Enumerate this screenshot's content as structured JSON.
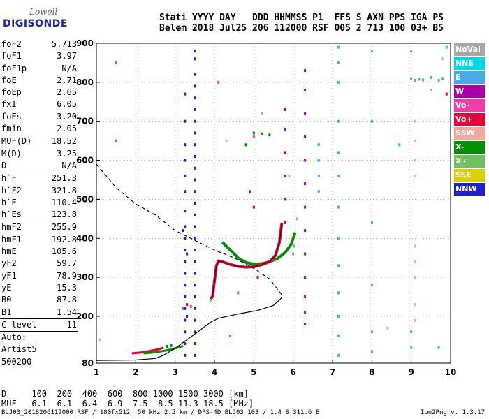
{
  "logo": {
    "brand_top": "Lowell",
    "brand_main": "DIGISONDE"
  },
  "header": {
    "line1": "Stati YYYY DAY   DDD HHMMSS P1  FFS S AXN PPS IGA PS",
    "line2": "Belem 2018 Jul25 206 112000 RSF 005 2 713 100 03+ B5"
  },
  "params": [
    {
      "name": "foF2",
      "value": "5.713"
    },
    {
      "name": "foF1",
      "value": "3.97"
    },
    {
      "name": "foF1p",
      "value": "N/A"
    },
    {
      "name": "foE",
      "value": "2.71"
    },
    {
      "name": "foEp",
      "value": "2.65"
    },
    {
      "name": "fxI",
      "value": "6.05"
    },
    {
      "name": "foEs",
      "value": "3.20"
    },
    {
      "name": "fmin",
      "value": "2.05"
    },
    {
      "sep": true
    },
    {
      "name": "MUF(D)",
      "value": "18.52"
    },
    {
      "name": "M(D)",
      "value": "3.25"
    },
    {
      "name": "D",
      "value": "N/A"
    },
    {
      "sep": true
    },
    {
      "name": "h`F",
      "value": "251.3"
    },
    {
      "name": "h`F2",
      "value": "321.8"
    },
    {
      "name": "h`E",
      "value": "110.4"
    },
    {
      "name": "h`Es",
      "value": "123.8"
    },
    {
      "sep": true
    },
    {
      "name": "hmF2",
      "value": "255.9"
    },
    {
      "name": "hmF1",
      "value": "192.8"
    },
    {
      "name": "hmE",
      "value": "105.6"
    },
    {
      "name": "yF2",
      "value": "59.7"
    },
    {
      "name": "yF1",
      "value": "78.9"
    },
    {
      "name": "yE",
      "value": "15.3"
    },
    {
      "name": "B0",
      "value": "87.8"
    },
    {
      "name": "B1",
      "value": "1.54"
    },
    {
      "sep": true
    },
    {
      "name": "C-level",
      "value": "11"
    },
    {
      "sep": true
    },
    {
      "name": "Auto:",
      "value": ""
    },
    {
      "name": "Artist5",
      "value": ""
    },
    {
      "name": "500200",
      "value": ""
    }
  ],
  "legend": [
    {
      "label": "NoVal",
      "color": "#a8a8a8"
    },
    {
      "label": "NNE",
      "color": "#00d8e8"
    },
    {
      "label": "E",
      "color": "#4aaae8"
    },
    {
      "label": "W",
      "color": "#a800a8"
    },
    {
      "label": "Vo-",
      "color": "#ee40a8"
    },
    {
      "label": "Vo+",
      "color": "#e8003a"
    },
    {
      "label": "SSW",
      "color": "#f0a8a0"
    },
    {
      "label": "X-",
      "color": "#009000"
    },
    {
      "label": "X+",
      "color": "#70c060"
    },
    {
      "label": "SSE",
      "color": "#d8d000"
    },
    {
      "label": "NNW",
      "color": "#2020c8"
    }
  ],
  "footer": {
    "line1": "D     100  200  400  600  800 1000 1500 3000 [km]",
    "line2": "MUF   6.1  6.1  6.4  6.9  7.5  8.5 11.3 18.5 [MHz]",
    "bottom": "BLJ03_2018206112000.RSF / 180fx512h 50 kHz 2.5 km / DPS-4D BLJ03 103 / 1.4 S 311.6 E",
    "version": "Ion2Png v. 1.3.17"
  },
  "chart_data": {
    "type": "scatter",
    "xlim": [
      1,
      10
    ],
    "ylim": [
      80,
      900
    ],
    "xticks": [
      1,
      2,
      3,
      4,
      5,
      6,
      7,
      8,
      9,
      10
    ],
    "yticks": [
      80,
      200,
      300,
      400,
      500,
      600,
      700,
      800,
      900
    ],
    "grid": true,
    "grid_style": "dotted",
    "profile_line": [
      [
        1.0,
        87
      ],
      [
        2.0,
        88
      ],
      [
        2.5,
        92
      ],
      [
        2.7,
        100
      ],
      [
        3.0,
        118
      ],
      [
        3.3,
        140
      ],
      [
        3.6,
        162
      ],
      [
        3.9,
        185
      ],
      [
        4.1,
        195
      ],
      [
        4.6,
        206
      ],
      [
        5.1,
        215
      ],
      [
        5.5,
        228
      ],
      [
        5.713,
        248
      ]
    ],
    "mufd_dashed": [
      [
        1.0,
        590
      ],
      [
        1.5,
        530
      ],
      [
        2.0,
        488
      ],
      [
        2.5,
        460
      ],
      [
        3.0,
        420
      ],
      [
        3.5,
        395
      ],
      [
        4.0,
        370
      ],
      [
        4.5,
        350
      ],
      [
        5.0,
        323
      ],
      [
        5.4,
        296
      ],
      [
        5.713,
        255
      ]
    ],
    "f_trace": [
      [
        3.9,
        245
      ],
      [
        3.95,
        250
      ],
      [
        4.0,
        290
      ],
      [
        4.05,
        330
      ],
      [
        4.1,
        342
      ],
      [
        4.2,
        340
      ],
      [
        4.4,
        333
      ],
      [
        4.6,
        328
      ],
      [
        4.8,
        326
      ],
      [
        5.0,
        327
      ],
      [
        5.2,
        332
      ],
      [
        5.4,
        340
      ],
      [
        5.55,
        356
      ],
      [
        5.65,
        390
      ],
      [
        5.713,
        440
      ]
    ],
    "x_trace": [
      [
        4.2,
        390
      ],
      [
        4.4,
        370
      ],
      [
        4.6,
        350
      ],
      [
        4.8,
        338
      ],
      [
        5.0,
        334
      ],
      [
        5.2,
        335
      ],
      [
        5.4,
        340
      ],
      [
        5.6,
        348
      ],
      [
        5.8,
        364
      ],
      [
        5.95,
        385
      ],
      [
        6.05,
        415
      ]
    ],
    "e_trace": [
      [
        1.9,
        105
      ],
      [
        2.2,
        108
      ],
      [
        2.4,
        112
      ],
      [
        2.6,
        116
      ],
      [
        2.71,
        120
      ]
    ],
    "es_trace": [
      [
        2.2,
        105
      ],
      [
        2.5,
        108
      ],
      [
        2.8,
        113
      ],
      [
        3.0,
        118
      ],
      [
        3.2,
        124
      ]
    ],
    "points": [
      [
        3.5,
        880,
        "NNW"
      ],
      [
        3.5,
        860,
        "NNW"
      ],
      [
        3.5,
        820,
        "NNW"
      ],
      [
        3.5,
        790,
        "NNW"
      ],
      [
        3.5,
        760,
        "NNW"
      ],
      [
        3.5,
        730,
        "NNW"
      ],
      [
        3.5,
        700,
        "NNW"
      ],
      [
        3.5,
        670,
        "NNW"
      ],
      [
        3.5,
        640,
        "NNW"
      ],
      [
        3.5,
        610,
        "NNW"
      ],
      [
        3.5,
        580,
        "NNW"
      ],
      [
        3.5,
        550,
        "NNW"
      ],
      [
        3.5,
        520,
        "NNW"
      ],
      [
        3.5,
        490,
        "NNW"
      ],
      [
        3.5,
        460,
        "NNW"
      ],
      [
        3.5,
        430,
        "NNW"
      ],
      [
        3.5,
        400,
        "NNW"
      ],
      [
        3.5,
        370,
        "NNW"
      ],
      [
        3.5,
        340,
        "NNW"
      ],
      [
        3.5,
        310,
        "NNW"
      ],
      [
        3.5,
        280,
        "NNW"
      ],
      [
        3.5,
        250,
        "NNW"
      ],
      [
        3.5,
        220,
        "NNW"
      ],
      [
        3.5,
        190,
        "NNW"
      ],
      [
        3.5,
        160,
        "NNW"
      ],
      [
        3.5,
        130,
        "NNW"
      ],
      [
        3.5,
        100,
        "NNW"
      ],
      [
        3.25,
        770,
        "NNW"
      ],
      [
        3.25,
        700,
        "NNW"
      ],
      [
        3.25,
        640,
        "NNW"
      ],
      [
        3.25,
        600,
        "NNW"
      ],
      [
        3.25,
        560,
        "NNW"
      ],
      [
        3.25,
        520,
        "NNW"
      ],
      [
        3.25,
        470,
        "NNW"
      ],
      [
        3.25,
        430,
        "NNW"
      ],
      [
        3.25,
        400,
        "NNW"
      ],
      [
        3.25,
        370,
        "NNW"
      ],
      [
        3.25,
        340,
        "NNW"
      ],
      [
        3.25,
        310,
        "NNW"
      ],
      [
        3.25,
        280,
        "NNW"
      ],
      [
        3.25,
        250,
        "NNW"
      ],
      [
        3.25,
        220,
        "NNW"
      ],
      [
        3.25,
        190,
        "NNW"
      ],
      [
        3.25,
        160,
        "NNW"
      ],
      [
        3.25,
        130,
        "NNW"
      ],
      [
        3.25,
        100,
        "NNW"
      ],
      [
        3.2,
        420,
        "NNW"
      ],
      [
        3.3,
        360,
        "NNW"
      ],
      [
        3.3,
        200,
        "NNW"
      ],
      [
        6.3,
        830,
        "W"
      ],
      [
        6.3,
        780,
        "W"
      ],
      [
        6.3,
        720,
        "W"
      ],
      [
        6.3,
        660,
        "W"
      ],
      [
        6.3,
        600,
        "W"
      ],
      [
        6.3,
        540,
        "W"
      ],
      [
        6.3,
        480,
        "W"
      ],
      [
        6.3,
        420,
        "W"
      ],
      [
        6.3,
        360,
        "W"
      ],
      [
        6.3,
        300,
        "W"
      ],
      [
        6.3,
        250,
        "W"
      ],
      [
        6.3,
        210,
        "W"
      ],
      [
        6.3,
        180,
        "W"
      ],
      [
        5.8,
        730,
        "W"
      ],
      [
        5.8,
        680,
        "W"
      ],
      [
        5.8,
        620,
        "W"
      ],
      [
        5.8,
        560,
        "W"
      ],
      [
        5.8,
        500,
        "W"
      ],
      [
        5.8,
        440,
        "W"
      ],
      [
        7.15,
        890,
        "E"
      ],
      [
        7.15,
        850,
        "E"
      ],
      [
        7.15,
        800,
        "E"
      ],
      [
        7.15,
        700,
        "E"
      ],
      [
        7.15,
        620,
        "E"
      ],
      [
        7.15,
        560,
        "E"
      ],
      [
        7.15,
        480,
        "E"
      ],
      [
        7.15,
        400,
        "E"
      ],
      [
        7.15,
        330,
        "E"
      ],
      [
        7.15,
        260,
        "E"
      ],
      [
        7.15,
        200,
        "E"
      ],
      [
        7.15,
        150,
        "E"
      ],
      [
        7.15,
        100,
        "E"
      ],
      [
        6.65,
        640,
        "E"
      ],
      [
        6.65,
        600,
        "E"
      ],
      [
        6.65,
        560,
        "E"
      ],
      [
        6.65,
        520,
        "E"
      ],
      [
        8.0,
        880,
        "E"
      ],
      [
        8.0,
        700,
        "E"
      ],
      [
        8.0,
        440,
        "E"
      ],
      [
        8.0,
        280,
        "E"
      ],
      [
        8.0,
        160,
        "E"
      ],
      [
        8.0,
        110,
        "E"
      ],
      [
        9.0,
        810,
        "E"
      ],
      [
        9.1,
        805,
        "E"
      ],
      [
        9.2,
        808,
        "E"
      ],
      [
        9.3,
        806,
        "E"
      ],
      [
        9.5,
        812,
        "E"
      ],
      [
        9.7,
        805,
        "E"
      ],
      [
        9.8,
        810,
        "E"
      ],
      [
        9.0,
        880,
        "E"
      ],
      [
        9.0,
        160,
        "E"
      ],
      [
        9.0,
        120,
        "E"
      ],
      [
        9.7,
        120,
        "E"
      ],
      [
        1.5,
        850,
        "Vo-"
      ],
      [
        1.5,
        650,
        "Vo-"
      ],
      [
        4.1,
        800,
        "Vo-"
      ],
      [
        5.0,
        660,
        "Vo-"
      ],
      [
        4.6,
        260,
        "Vo-"
      ],
      [
        4.4,
        150,
        "Vo-"
      ],
      [
        3.2,
        220,
        "Vo-"
      ],
      [
        3.4,
        225,
        "Vo-"
      ],
      [
        4.9,
        520,
        "Vo+"
      ],
      [
        5.0,
        480,
        "Vo+"
      ],
      [
        9.9,
        770,
        "Vo+"
      ],
      [
        5.1,
        300,
        "Vo+"
      ],
      [
        3.3,
        230,
        "Vo+"
      ],
      [
        1.1,
        140,
        "SSW"
      ],
      [
        4.3,
        650,
        "SSW"
      ],
      [
        5.9,
        560,
        "SSW"
      ],
      [
        9.1,
        700,
        "SSW"
      ],
      [
        9.1,
        650,
        "SSW"
      ],
      [
        9.1,
        600,
        "SSW"
      ],
      [
        9.1,
        560,
        "SSW"
      ],
      [
        9.1,
        380,
        "SSW"
      ],
      [
        9.1,
        340,
        "SSW"
      ],
      [
        9.1,
        300,
        "SSW"
      ],
      [
        9.1,
        230,
        "SSW"
      ],
      [
        9.1,
        190,
        "SSW"
      ],
      [
        8.4,
        170,
        "SSW"
      ],
      [
        9.8,
        860,
        "SSW"
      ],
      [
        5.0,
        670,
        "X-"
      ],
      [
        5.2,
        668,
        "X-"
      ],
      [
        5.4,
        665,
        "X-"
      ],
      [
        4.8,
        640,
        "X-"
      ],
      [
        2.8,
        123,
        "X-"
      ],
      [
        2.9,
        125,
        "X-"
      ],
      [
        6.05,
        410,
        "X+"
      ],
      [
        6.02,
        380,
        "X+"
      ],
      [
        6.0,
        360,
        "X+"
      ],
      [
        3.9,
        240,
        "X+"
      ],
      [
        3.95,
        250,
        "X+"
      ],
      [
        5.2,
        720,
        "NoVal"
      ],
      [
        9.5,
        780,
        "NoVal"
      ],
      [
        6.1,
        450,
        "NoVal"
      ],
      [
        8.7,
        640,
        "NNE"
      ],
      [
        9.9,
        890,
        "NNE"
      ]
    ]
  }
}
